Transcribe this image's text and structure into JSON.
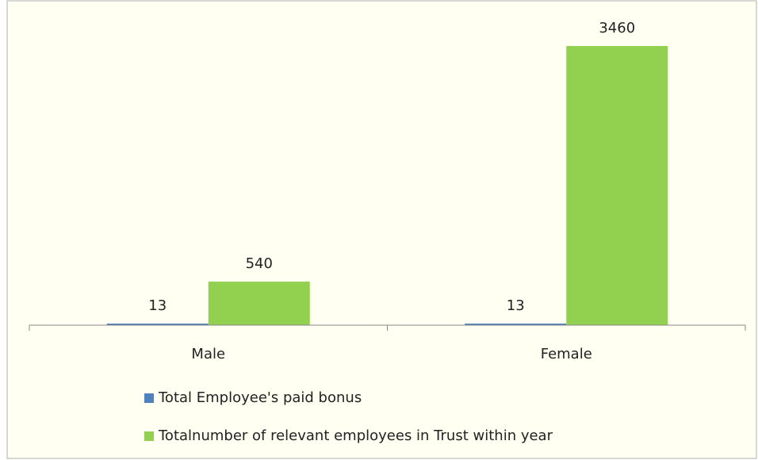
{
  "chart_data": {
    "type": "bar",
    "categories": [
      "Male",
      "Female"
    ],
    "series": [
      {
        "name": "Total Employee's paid bonus",
        "color": "#4f81bd",
        "values": [
          13,
          13
        ]
      },
      {
        "name": "Totalnumber of relevant employees in Trust within year",
        "color": "#92d050",
        "values": [
          540,
          3460
        ]
      }
    ]
  }
}
